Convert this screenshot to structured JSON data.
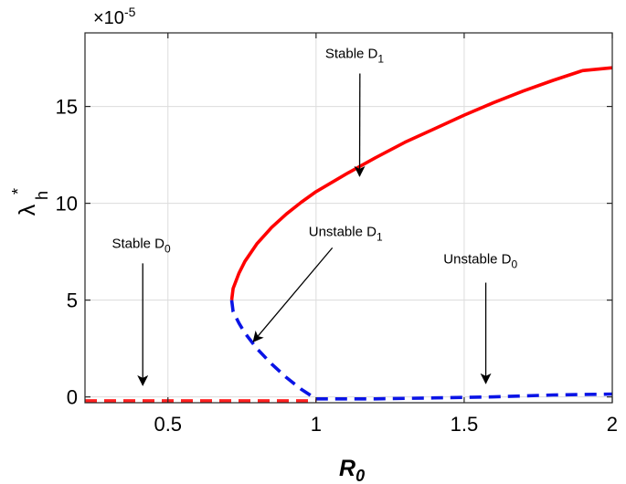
{
  "chart_data": {
    "type": "line",
    "xlabel": {
      "main": "R",
      "sub": "0"
    },
    "ylabel": {
      "main": "λ",
      "sup": "*",
      "sub": "h"
    },
    "y_scale_label": {
      "prefix": "×10",
      "exponent": "-5"
    },
    "xlim": [
      0.22,
      2.0
    ],
    "ylim": [
      -0.3,
      18.8
    ],
    "x_ticks": [
      {
        "value": 0.5,
        "label": "0.5"
      },
      {
        "value": 1.0,
        "label": "1"
      },
      {
        "value": 1.5,
        "label": "1.5"
      },
      {
        "value": 2.0,
        "label": "2"
      }
    ],
    "y_ticks": [
      {
        "value": 0,
        "label": "0"
      },
      {
        "value": 5,
        "label": "5"
      },
      {
        "value": 10,
        "label": "10"
      },
      {
        "value": 15,
        "label": "15"
      }
    ],
    "grid": true,
    "series": [
      {
        "key": "stable-d0",
        "color": "#ff2020",
        "style": "dashed",
        "x": [
          0.22,
          0.5,
          0.75,
          1.0
        ],
        "y": [
          -0.2,
          -0.2,
          -0.2,
          -0.2
        ]
      },
      {
        "key": "unstable-d0",
        "color": "#0a14e6",
        "style": "dashed",
        "x": [
          1.0,
          1.2,
          1.4,
          1.6,
          1.8,
          2.0
        ],
        "y": [
          -0.1,
          -0.1,
          -0.05,
          0.0,
          0.1,
          0.15
        ]
      },
      {
        "key": "unstable-d1",
        "color": "#0a14e6",
        "style": "dashed",
        "x": [
          0.715,
          0.72,
          0.74,
          0.76,
          0.8,
          0.85,
          0.9,
          0.95,
          1.0
        ],
        "y": [
          5.0,
          4.4,
          3.8,
          3.3,
          2.5,
          1.7,
          1.0,
          0.4,
          -0.1
        ]
      },
      {
        "key": "stable-d1",
        "color": "#ff0000",
        "style": "solid",
        "x": [
          0.715,
          0.72,
          0.74,
          0.76,
          0.8,
          0.85,
          0.9,
          0.95,
          1.0,
          1.1,
          1.2,
          1.3,
          1.4,
          1.5,
          1.6,
          1.7,
          1.8,
          1.9,
          2.0
        ],
        "y": [
          5.0,
          5.6,
          6.4,
          7.0,
          7.9,
          8.75,
          9.45,
          10.05,
          10.6,
          11.5,
          12.35,
          13.15,
          13.85,
          14.55,
          15.2,
          15.8,
          16.35,
          16.85,
          17.0
        ]
      }
    ],
    "annotations": [
      {
        "key": "ann-stable-d1",
        "text": "Stable D",
        "sub": "1",
        "anchor": "middle",
        "text_xy": [
          1.13,
          17.5
        ],
        "tail_xy": [
          1.148,
          16.7
        ],
        "head_xy": [
          1.147,
          11.4
        ]
      },
      {
        "key": "ann-stable-d0",
        "text": "Stable D",
        "sub": "0",
        "anchor": "middle",
        "text_xy": [
          0.41,
          7.7
        ],
        "tail_xy": [
          0.415,
          6.9
        ],
        "head_xy": [
          0.415,
          0.6
        ]
      },
      {
        "key": "ann-unstable-d1",
        "text": "Unstable D",
        "sub": "1",
        "anchor": "start",
        "text_xy": [
          0.975,
          8.3
        ],
        "tail_xy": [
          1.055,
          7.7
        ],
        "head_xy": [
          0.788,
          2.85
        ]
      },
      {
        "key": "ann-unstable-d0",
        "text": "Unstable D",
        "sub": "0",
        "anchor": "middle",
        "text_xy": [
          1.555,
          6.9
        ],
        "tail_xy": [
          1.573,
          5.9
        ],
        "head_xy": [
          1.573,
          0.7
        ]
      }
    ]
  }
}
